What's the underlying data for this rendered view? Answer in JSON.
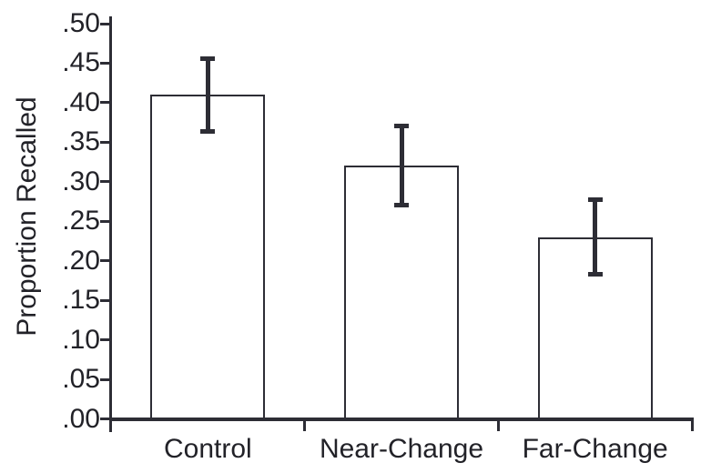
{
  "figure": {
    "background": "#ffffff",
    "line_color": "#2d2d35",
    "text_color": "#222228",
    "bar_fill": "#ffffff"
  },
  "chart_data": {
    "type": "bar",
    "title": "",
    "xlabel": "",
    "ylabel": "Proportion Recalled",
    "categories": [
      "Control",
      "Near-Change",
      "Far-Change"
    ],
    "values": [
      0.41,
      0.32,
      0.23
    ],
    "error_bars": [
      0.046,
      0.05,
      0.047
    ],
    "ylim": [
      0,
      0.5
    ],
    "ytick_step": 0.05,
    "ytick_labels": [
      ".00",
      ".05",
      ".10",
      ".15",
      ".20",
      ".25",
      ".30",
      ".35",
      ".40",
      ".45",
      ".50"
    ],
    "grid": false,
    "legend": null,
    "bar_style": "outline-white",
    "error_bar_style": "cap-both-ends"
  }
}
